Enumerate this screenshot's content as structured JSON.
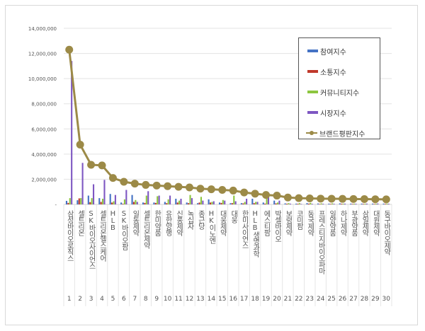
{
  "chart_data": {
    "type": "bar+line",
    "title": "",
    "xlabel": "",
    "ylabel": "",
    "ylim": [
      0,
      14000000
    ],
    "yticks": [
      "-",
      "2,000,000",
      "4,000,000",
      "6,000,000",
      "8,000,000",
      "10,000,000",
      "12,000,000",
      "14,000,000"
    ],
    "grid": true,
    "legend_position": "upper right (inside plot)",
    "categories": [
      "삼성바이오로직스",
      "셀트리온",
      "SK바이오사이언스",
      "셀트리온헬스케어",
      "HLB",
      "SK바이오팜",
      "일동제약",
      "셀트리온제약",
      "한미약품",
      "유한양행",
      "신풍제약",
      "녹십자",
      "종근당",
      "HK이노엔",
      "대웅제약",
      "대웅",
      "한미사이언스",
      "HLB생명과학",
      "에스티팜",
      "박셀바이오",
      "보령제약",
      "코미팜",
      "동국제약",
      "프레스티지바이오파마",
      "일양약품",
      "하나제약",
      "부광약품",
      "삼일제약",
      "대원제약",
      "동구바이오제약"
    ],
    "ranks": [
      "1",
      "2",
      "3",
      "4",
      "5",
      "6",
      "7",
      "8",
      "9",
      "10",
      "11",
      "12",
      "13",
      "14",
      "15",
      "16",
      "17",
      "18",
      "19",
      "20",
      "21",
      "22",
      "23",
      "24",
      "25",
      "26",
      "27",
      "28",
      "29",
      "30"
    ],
    "series": [
      {
        "name": "참여지수",
        "type": "bar",
        "color": "#4472c4",
        "values": [
          280000,
          330000,
          700000,
          500000,
          830000,
          150000,
          750000,
          150000,
          150000,
          200000,
          450000,
          150000,
          100000,
          400000,
          150000,
          100000,
          100000,
          450000,
          150000,
          300000,
          80000,
          60000,
          100000,
          70000,
          60000,
          80000,
          60000,
          60000,
          60000,
          60000
        ]
      },
      {
        "name": "소통지수",
        "type": "bar",
        "color": "#c0392b",
        "values": [
          120000,
          480000,
          180000,
          200000,
          150000,
          50000,
          200000,
          120000,
          120000,
          100000,
          150000,
          100000,
          150000,
          150000,
          120000,
          100000,
          80000,
          100000,
          60000,
          80000,
          50000,
          50000,
          60000,
          40000,
          40000,
          50000,
          40000,
          40000,
          40000,
          40000
        ]
      },
      {
        "name": "커뮤니티지수",
        "type": "bar",
        "color": "#8dc63f",
        "values": [
          500000,
          500000,
          500000,
          450000,
          250000,
          400000,
          350000,
          700000,
          650000,
          400000,
          300000,
          750000,
          600000,
          200000,
          350000,
          700000,
          200000,
          200000,
          650000,
          150000,
          100000,
          100000,
          120000,
          80000,
          80000,
          60000,
          60000,
          60000,
          60000,
          60000
        ]
      },
      {
        "name": "시장지수",
        "type": "bar",
        "color": "#7e57c2",
        "values": [
          11400000,
          3300000,
          1600000,
          1950000,
          750000,
          1150000,
          200000,
          1050000,
          700000,
          700000,
          450000,
          500000,
          300000,
          250000,
          300000,
          250000,
          450000,
          200000,
          600000,
          300000,
          60000,
          40000,
          50000,
          50000,
          50000,
          60000,
          50000,
          60000,
          70000,
          50000
        ]
      },
      {
        "name": "브랜드평판지수",
        "type": "line",
        "color": "#9c8a47",
        "values": [
          12300000,
          4750000,
          3150000,
          3100000,
          2100000,
          1800000,
          1650000,
          1550000,
          1500000,
          1450000,
          1400000,
          1350000,
          1250000,
          1200000,
          1150000,
          1100000,
          950000,
          850000,
          750000,
          700000,
          550000,
          500000,
          480000,
          460000,
          450000,
          440000,
          430000,
          420000,
          410000,
          400000
        ]
      }
    ]
  }
}
